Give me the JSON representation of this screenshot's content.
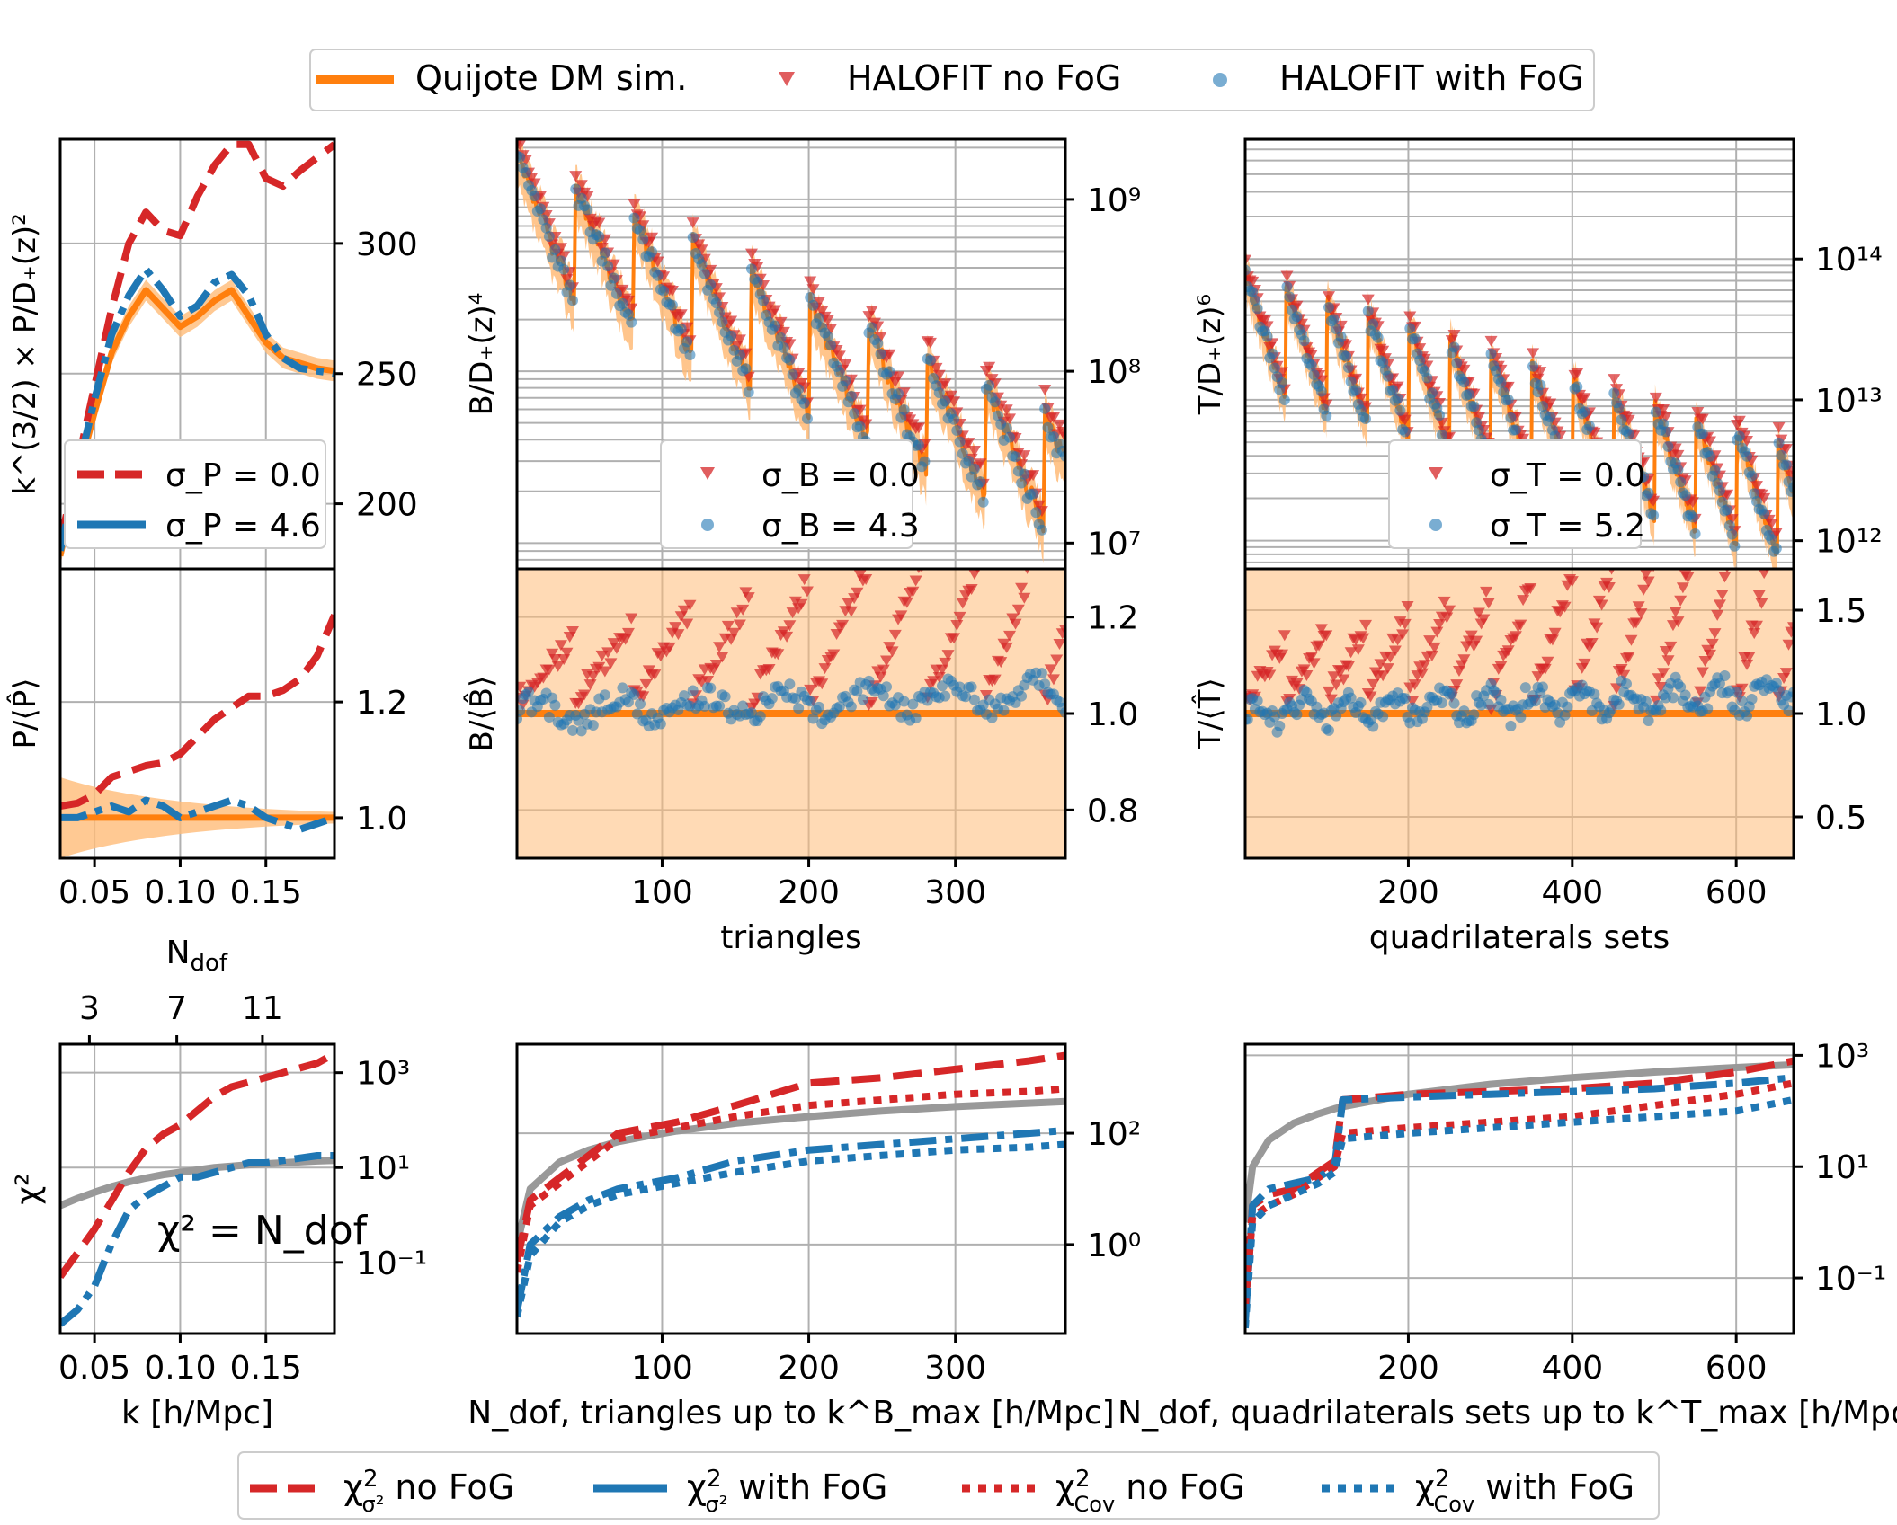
{
  "figure": {
    "top_legend": [
      {
        "label": "Quijote DM sim.",
        "marker": "line",
        "color": "#ff7f0e"
      },
      {
        "label": "HALOFIT no FoG",
        "marker": "triangle",
        "color": "#d62728"
      },
      {
        "label": "HALOFIT with FoG",
        "marker": "hexagon",
        "color": "#1f77b4"
      }
    ],
    "bottom_legend": [
      {
        "label": "χ²_σ² no FoG",
        "style": "dashed",
        "color": "#d62728"
      },
      {
        "label": "χ²_σ² with FoG",
        "style": "solid",
        "color": "#1f77b4"
      },
      {
        "label": "χ²_Cov no FoG",
        "style": "dotted",
        "color": "#d62728"
      },
      {
        "label": "χ²_Cov with FoG",
        "style": "dotted",
        "color": "#1f77b4"
      }
    ],
    "colors": {
      "orange": "#ff7f0e",
      "red": "#d62728",
      "blue": "#1f77b4",
      "gray": "#999999",
      "band": "#ffbb78"
    }
  },
  "chart_data": [
    {
      "id": "P-top",
      "type": "line",
      "ylabel": "k^(3/2) × P/D₊(z)²",
      "x_range": [
        0.03,
        0.19
      ],
      "ylim": [
        175,
        340
      ],
      "yticks": [
        {
          "v": 200,
          "label": "200"
        },
        {
          "v": 250,
          "label": "250"
        },
        {
          "v": 300,
          "label": "300"
        }
      ],
      "legend": [
        {
          "label": "σ_P = 0.0"
        },
        {
          "label": "σ_P = 4.6"
        }
      ],
      "series": [
        {
          "name": "Quijote DM sim.",
          "x": [
            0.03,
            0.04,
            0.05,
            0.06,
            0.07,
            0.08,
            0.09,
            0.1,
            0.11,
            0.12,
            0.13,
            0.14,
            0.15,
            0.16,
            0.17,
            0.18,
            0.19
          ],
          "y": [
            180,
            210,
            235,
            258,
            272,
            282,
            275,
            268,
            272,
            278,
            282,
            272,
            262,
            256,
            254,
            252,
            251
          ]
        },
        {
          "name": "σ_P = 0.0",
          "x": [
            0.03,
            0.04,
            0.05,
            0.06,
            0.07,
            0.08,
            0.09,
            0.1,
            0.11,
            0.12,
            0.13,
            0.14,
            0.15,
            0.16,
            0.17,
            0.18,
            0.19
          ],
          "y": [
            185,
            215,
            245,
            275,
            300,
            312,
            305,
            303,
            318,
            330,
            338,
            338,
            325,
            322,
            328,
            333,
            338
          ]
        },
        {
          "name": "σ_P = 4.6",
          "x": [
            0.03,
            0.04,
            0.05,
            0.06,
            0.07,
            0.08,
            0.09,
            0.1,
            0.11,
            0.12,
            0.13,
            0.14,
            0.15,
            0.16,
            0.17,
            0.18,
            0.19
          ],
          "y": [
            182,
            212,
            240,
            265,
            280,
            290,
            282,
            272,
            276,
            285,
            288,
            280,
            265,
            256,
            252,
            251,
            250
          ]
        }
      ]
    },
    {
      "id": "P-mid",
      "type": "line",
      "ylabel": "P/⟨P̂⟩",
      "x_range": [
        0.03,
        0.19
      ],
      "ylim": [
        0.93,
        1.43
      ],
      "yticks": [
        {
          "v": 1.0,
          "label": "1.0"
        },
        {
          "v": 1.2,
          "label": "1.2"
        }
      ],
      "series": [
        {
          "name": "σ_P = 0.0",
          "x": [
            0.03,
            0.04,
            0.05,
            0.06,
            0.07,
            0.08,
            0.09,
            0.1,
            0.11,
            0.12,
            0.13,
            0.14,
            0.15,
            0.16,
            0.17,
            0.18,
            0.19
          ],
          "y": [
            1.02,
            1.025,
            1.04,
            1.07,
            1.08,
            1.09,
            1.095,
            1.11,
            1.14,
            1.17,
            1.19,
            1.21,
            1.21,
            1.22,
            1.24,
            1.28,
            1.35
          ]
        },
        {
          "name": "σ_P = 4.6",
          "x": [
            0.03,
            0.04,
            0.05,
            0.06,
            0.07,
            0.08,
            0.09,
            0.1,
            0.11,
            0.12,
            0.13,
            0.14,
            0.15,
            0.16,
            0.17,
            0.18,
            0.19
          ],
          "y": [
            1.0,
            1.0,
            1.01,
            1.02,
            1.01,
            1.03,
            1.02,
            1.0,
            1.01,
            1.02,
            1.03,
            1.02,
            1.0,
            0.99,
            0.98,
            0.99,
            1.0
          ]
        }
      ]
    },
    {
      "id": "P-chi",
      "type": "line",
      "ylabel": "χ²",
      "xlabel": "k [h/Mpc]",
      "x_range": [
        0.03,
        0.19
      ],
      "ylog": [
        -2.5,
        3.6
      ],
      "xticks": [
        {
          "v": 0.05,
          "label": "0.05"
        },
        {
          "v": 0.1,
          "label": "0.10"
        },
        {
          "v": 0.15,
          "label": "0.15"
        }
      ],
      "top_axis": {
        "label": "N_dof",
        "ticks": [
          {
            "v": 0.047,
            "label": "3"
          },
          {
            "v": 0.098,
            "label": "7"
          },
          {
            "v": 0.148,
            "label": "11"
          }
        ]
      },
      "yticks": [
        {
          "exp": -1,
          "label": "10⁻¹"
        },
        {
          "exp": 1,
          "label": "10¹"
        },
        {
          "exp": 3,
          "label": "10³"
        }
      ],
      "annotation": "χ² = N_dof",
      "series": [
        {
          "name": "χ²_σ² no FoG",
          "x": [
            0.03,
            0.04,
            0.05,
            0.06,
            0.07,
            0.08,
            0.09,
            0.1,
            0.11,
            0.12,
            0.13,
            0.14,
            0.15,
            0.16,
            0.17,
            0.18,
            0.19
          ],
          "log10_y": [
            -1.3,
            -0.8,
            -0.3,
            0.3,
            0.9,
            1.4,
            1.7,
            1.9,
            2.2,
            2.5,
            2.7,
            2.8,
            2.9,
            3.0,
            3.1,
            3.2,
            3.4
          ]
        },
        {
          "name": "χ²_σ² with FoG",
          "x": [
            0.03,
            0.04,
            0.05,
            0.06,
            0.07,
            0.08,
            0.09,
            0.1,
            0.11,
            0.12,
            0.13,
            0.14,
            0.15,
            0.16,
            0.17,
            0.18,
            0.19
          ],
          "log10_y": [
            -2.3,
            -2.0,
            -1.5,
            -0.6,
            0.1,
            0.4,
            0.6,
            0.8,
            0.8,
            0.9,
            1.0,
            1.1,
            1.1,
            1.15,
            1.2,
            1.25,
            1.25
          ]
        },
        {
          "name": "χ² = N_dof",
          "x": [
            0.03,
            0.04,
            0.05,
            0.06,
            0.07,
            0.08,
            0.09,
            0.1,
            0.11,
            0.12,
            0.13,
            0.14,
            0.15,
            0.16,
            0.17,
            0.18,
            0.19
          ],
          "log10_y": [
            0.2,
            0.35,
            0.48,
            0.6,
            0.7,
            0.78,
            0.85,
            0.9,
            0.95,
            1.0,
            1.03,
            1.06,
            1.08,
            1.1,
            1.12,
            1.14,
            1.15
          ]
        }
      ]
    },
    {
      "id": "B-top",
      "type": "scatter",
      "ylabel": "B/D₊(z)⁴",
      "x_range": [
        1,
        375
      ],
      "ylog": [
        6.85,
        9.35
      ],
      "yticks": [
        {
          "exp": 7,
          "label": "10⁷"
        },
        {
          "exp": 8,
          "label": "10⁸"
        },
        {
          "exp": 9,
          "label": "10⁹"
        }
      ],
      "legend": [
        {
          "label": "σ_B = 0.0"
        },
        {
          "label": "σ_B = 4.3"
        }
      ],
      "model": {
        "n_points": 375,
        "segment_length": 40,
        "top_start": 9.25,
        "top_end": 7.6,
        "drop": 0.85
      }
    },
    {
      "id": "B-mid",
      "type": "scatter",
      "ylabel": "B/⟨B̂⟩",
      "xlabel": "triangles",
      "x_range": [
        1,
        375
      ],
      "ylim": [
        0.7,
        1.3
      ],
      "xticks": [
        {
          "v": 100,
          "label": "100"
        },
        {
          "v": 200,
          "label": "200"
        },
        {
          "v": 300,
          "label": "300"
        }
      ],
      "yticks": [
        {
          "v": 0.8,
          "label": "0.8"
        },
        {
          "v": 1.0,
          "label": "1.0"
        },
        {
          "v": 1.2,
          "label": "1.2"
        }
      ]
    },
    {
      "id": "B-chi",
      "type": "line",
      "xlabel": "N_dof, triangles up to k^B_max [h/Mpc]",
      "x_range": [
        1,
        375
      ],
      "ylog": [
        -1.6,
        3.6
      ],
      "xticks": [
        {
          "v": 100,
          "label": "100"
        },
        {
          "v": 200,
          "label": "200"
        },
        {
          "v": 300,
          "label": "300"
        }
      ],
      "yticks": [
        {
          "exp": 0,
          "label": "10⁰"
        },
        {
          "exp": 2,
          "label": "10²"
        }
      ],
      "series": [
        {
          "name": "χ²_σ² no FoG",
          "x": [
            1,
            10,
            30,
            50,
            70,
            90,
            110,
            150,
            200,
            250,
            300,
            350,
            375
          ],
          "log10_y": [
            -0.3,
            0.8,
            1.2,
            1.6,
            2.0,
            2.1,
            2.2,
            2.5,
            2.9,
            3.0,
            3.15,
            3.3,
            3.4
          ]
        },
        {
          "name": "χ²_σ² with FoG",
          "x": [
            1,
            10,
            30,
            50,
            70,
            90,
            110,
            150,
            200,
            250,
            300,
            350,
            375
          ],
          "log10_y": [
            -1.2,
            0.0,
            0.5,
            0.8,
            1.0,
            1.1,
            1.2,
            1.5,
            1.7,
            1.8,
            1.9,
            2.0,
            2.05
          ]
        },
        {
          "name": "χ²_Cov no FoG",
          "x": [
            1,
            10,
            30,
            50,
            70,
            90,
            110,
            150,
            200,
            250,
            300,
            350,
            375
          ],
          "log10_y": [
            -0.5,
            0.7,
            1.1,
            1.5,
            1.9,
            2.0,
            2.1,
            2.3,
            2.5,
            2.6,
            2.7,
            2.75,
            2.8
          ]
        },
        {
          "name": "χ²_Cov with FoG",
          "x": [
            1,
            10,
            30,
            50,
            70,
            90,
            110,
            150,
            200,
            250,
            300,
            350,
            375
          ],
          "log10_y": [
            -1.3,
            -0.2,
            0.4,
            0.7,
            0.9,
            1.0,
            1.1,
            1.3,
            1.5,
            1.6,
            1.7,
            1.75,
            1.8
          ]
        },
        {
          "name": "χ² = N_dof",
          "x": [
            1,
            10,
            30,
            50,
            70,
            90,
            110,
            150,
            200,
            250,
            300,
            350,
            375
          ],
          "log10_y": [
            0.0,
            1.0,
            1.48,
            1.7,
            1.85,
            1.95,
            2.04,
            2.18,
            2.3,
            2.4,
            2.48,
            2.54,
            2.57
          ]
        }
      ]
    },
    {
      "id": "T-top",
      "type": "scatter",
      "ylabel": "T/D₊(z)⁶",
      "x_range": [
        1,
        670
      ],
      "ylog": [
        11.8,
        14.85
      ],
      "yticks": [
        {
          "exp": 12,
          "label": "10¹²"
        },
        {
          "exp": 13,
          "label": "10¹³"
        },
        {
          "exp": 14,
          "label": "10¹⁴"
        }
      ],
      "legend": [
        {
          "label": "σ_T = 0.0"
        },
        {
          "label": "σ_T = 5.2"
        }
      ],
      "model": {
        "n_points": 670,
        "segment_length": 50,
        "top_start": 13.9,
        "top_end": 12.6,
        "drop": 0.9
      }
    },
    {
      "id": "T-mid",
      "type": "scatter",
      "ylabel": "T/⟨T̂⟩",
      "xlabel": "quadrilaterals sets",
      "x_range": [
        1,
        670
      ],
      "ylim": [
        0.3,
        1.7
      ],
      "xticks": [
        {
          "v": 200,
          "label": "200"
        },
        {
          "v": 400,
          "label": "400"
        },
        {
          "v": 600,
          "label": "600"
        }
      ],
      "yticks": [
        {
          "v": 0.5,
          "label": "0.5"
        },
        {
          "v": 1.0,
          "label": "1.0"
        },
        {
          "v": 1.5,
          "label": "1.5"
        }
      ]
    },
    {
      "id": "T-chi",
      "type": "line",
      "xlabel": "N_dof, quadrilaterals sets up to k^T_max [h/Mpc]",
      "x_range": [
        1,
        670
      ],
      "ylog": [
        -2.0,
        3.2
      ],
      "xticks": [
        {
          "v": 200,
          "label": "200"
        },
        {
          "v": 400,
          "label": "400"
        },
        {
          "v": 600,
          "label": "600"
        }
      ],
      "yticks": [
        {
          "exp": -1,
          "label": "10⁻¹"
        },
        {
          "exp": 1,
          "label": "10¹"
        },
        {
          "exp": 3,
          "label": "10³"
        }
      ],
      "series": [
        {
          "name": "χ²_σ² no FoG",
          "x": [
            1,
            10,
            30,
            60,
            90,
            110,
            120,
            200,
            300,
            400,
            500,
            600,
            670
          ],
          "log10_y": [
            -1.5,
            0.3,
            0.5,
            0.6,
            0.9,
            1.1,
            2.2,
            2.3,
            2.35,
            2.4,
            2.5,
            2.7,
            2.9
          ]
        },
        {
          "name": "χ²_σ² with FoG",
          "x": [
            1,
            10,
            30,
            60,
            90,
            110,
            120,
            200,
            300,
            400,
            500,
            600,
            670
          ],
          "log10_y": [
            -1.8,
            0.3,
            0.6,
            0.7,
            0.8,
            1.0,
            2.2,
            2.25,
            2.3,
            2.35,
            2.4,
            2.5,
            2.6
          ]
        },
        {
          "name": "χ²_Cov no FoG",
          "x": [
            1,
            10,
            30,
            60,
            90,
            110,
            120,
            200,
            300,
            400,
            500,
            600,
            670
          ],
          "log10_y": [
            -1.5,
            0.1,
            0.3,
            0.5,
            0.8,
            1.0,
            1.6,
            1.7,
            1.8,
            1.9,
            2.1,
            2.3,
            2.5
          ]
        },
        {
          "name": "χ²_Cov with FoG",
          "x": [
            1,
            10,
            30,
            60,
            90,
            110,
            120,
            200,
            300,
            400,
            500,
            600,
            670
          ],
          "log10_y": [
            -1.9,
            0.0,
            0.3,
            0.5,
            0.7,
            0.9,
            1.5,
            1.6,
            1.7,
            1.8,
            1.9,
            2.0,
            2.2
          ]
        },
        {
          "name": "χ² = N_dof",
          "x": [
            1,
            10,
            30,
            60,
            90,
            110,
            120,
            200,
            300,
            400,
            500,
            600,
            670
          ],
          "log10_y": [
            0.0,
            1.0,
            1.48,
            1.78,
            1.95,
            2.04,
            2.08,
            2.3,
            2.48,
            2.6,
            2.7,
            2.78,
            2.83
          ]
        }
      ]
    }
  ]
}
